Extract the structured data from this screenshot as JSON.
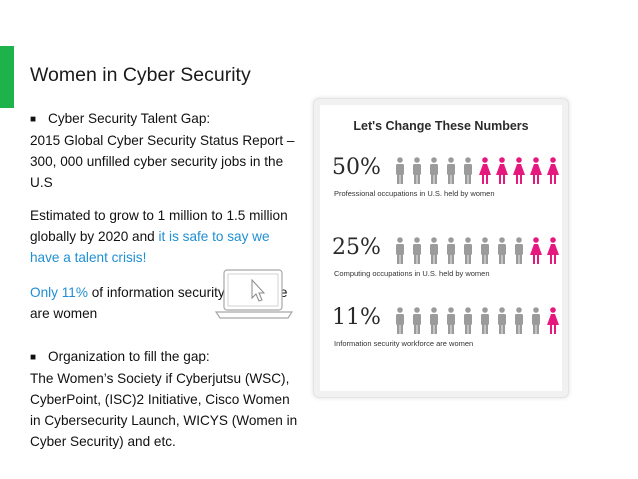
{
  "slide": {
    "title": "Women in Cyber Security",
    "accent_color": "#1db34a",
    "link_color": "#1f8fd4"
  },
  "bullets": {
    "b1_line1": "Cyber Security Talent Gap:",
    "b1_rest": "2015 Global Cyber Security Status Report – 300, 000 unfilled cyber security jobs in the U.S",
    "b2_plain": "Estimated to grow to 1 million to 1.5 million globally by 2020 and ",
    "b2_highlight": "it is safe to say we have a talent crisis!",
    "b3_highlight": "Only 11%",
    "b3_plain": " of information security workforce are women",
    "b4_line1": "Organization to fill the gap:",
    "b4_rest": "The Women’s Society if Cyberjutsu (WSC), CyberPoint, (ISC)2 Initiative, Cisco Women in Cybersecurity Launch, WICYS (Women in Cyber Security) and etc."
  },
  "infographic": {
    "title": "Let's Change These Numbers",
    "male_color": "#9b9b9b",
    "female_color": "#e5197d",
    "stats": [
      {
        "percent": "50%",
        "caption": "Professional occupations in U.S. held by women",
        "women": 5,
        "total": 10
      },
      {
        "percent": "25%",
        "caption": "Computing occupations in U.S. held by women",
        "women": 2,
        "total": 10
      },
      {
        "percent": "11%",
        "caption": "Information security workforce are women",
        "women": 1,
        "total": 10
      }
    ]
  }
}
